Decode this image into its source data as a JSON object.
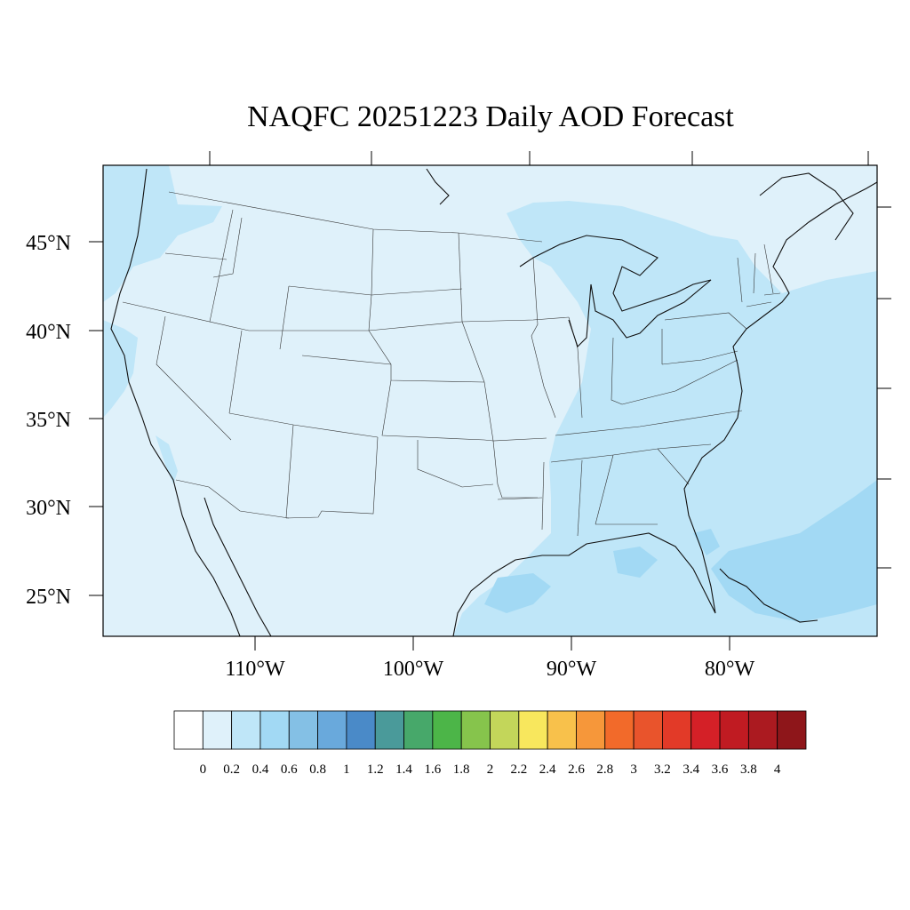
{
  "title": "NAQFC 20251223 Daily AOD Forecast",
  "lat_labels": [
    "45°N",
    "40°N",
    "35°N",
    "30°N",
    "25°N"
  ],
  "lon_labels": [
    "110°W",
    "100°W",
    "90°W",
    "80°W"
  ],
  "colorbar": {
    "labels": [
      "0",
      "0.2",
      "0.4",
      "0.6",
      "0.8",
      "1",
      "1.2",
      "1.4",
      "1.6",
      "1.8",
      "2",
      "2.2",
      "2.4",
      "2.6",
      "2.8",
      "3",
      "3.2",
      "3.4",
      "3.6",
      "3.8",
      "4"
    ],
    "colors": [
      "#ffffff",
      "#dff1fa",
      "#bfe6f8",
      "#a2d9f4",
      "#84c0e5",
      "#69a9dc",
      "#4a8ac8",
      "#4a9a9a",
      "#47a86a",
      "#4cb548",
      "#86c44c",
      "#c3d65a",
      "#f8e75d",
      "#f8c14b",
      "#f6973a",
      "#f26a2a",
      "#e9542c",
      "#e23a28",
      "#d42027",
      "#c01b22",
      "#ab1a20",
      "#8e161a"
    ]
  },
  "colors": {
    "background_field": "#dff1fa",
    "elevated_field": "#bfe6f8",
    "high_field": "#a2d9f4"
  }
}
